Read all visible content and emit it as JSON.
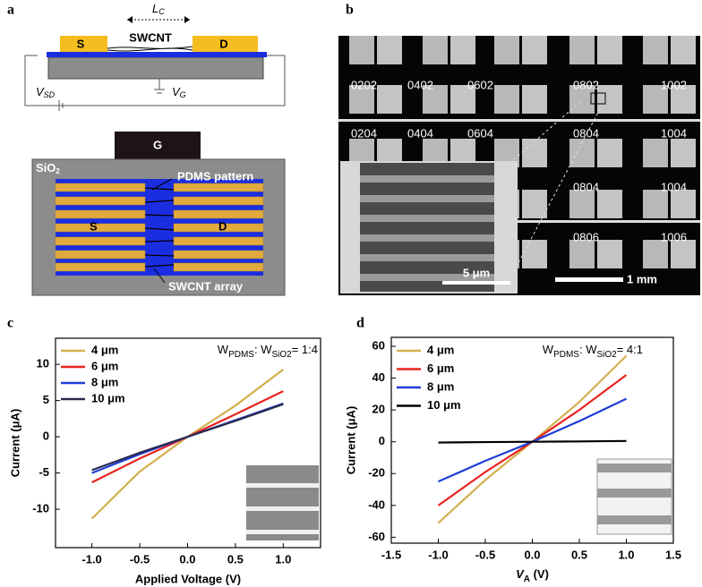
{
  "panel_a": {
    "label": "a",
    "lc_main": "L",
    "lc_sub": "C",
    "swcnt": "SWCNT",
    "source": "S",
    "drain": "D",
    "vsd_main": "V",
    "vsd_sub": "SD",
    "vg_main": "V",
    "vg_sub": "G",
    "gate": "G",
    "sio2_main": "SiO",
    "sio2_sub": "2",
    "pdms": "PDMS pattern",
    "source2": "S",
    "drain2": "D",
    "array": "SWCNT array"
  },
  "panel_b": {
    "label": "b",
    "pad_labels": [
      "0202",
      "0402",
      "0602",
      "0802",
      "1002",
      "0204",
      "0404",
      "0604",
      "0804",
      "1004",
      "0804",
      "1004",
      "0806",
      "1006"
    ],
    "inset_scale": "5 μm",
    "scale": "1 mm"
  },
  "chart_data": [
    {
      "type": "line",
      "panel_label": "c",
      "annotation_parts": [
        "W",
        "PDMS",
        ": W",
        "SiO2",
        "= 1:4"
      ],
      "x_label": "Applied Voltage (V)",
      "y_label": "Current (μA)",
      "x": [
        -1,
        -0.5,
        0,
        0.5,
        1
      ],
      "series": [
        {
          "name": "4 μm",
          "color": "#d4af4f",
          "values": [
            -11.3,
            -4.8,
            0,
            4.3,
            9.3
          ]
        },
        {
          "name": "6 μm",
          "color": "#e8231f",
          "values": [
            -6.3,
            -3.0,
            0,
            3.1,
            6.3
          ]
        },
        {
          "name": "8 μm",
          "color": "#1f3fd6",
          "values": [
            -5.0,
            -2.4,
            0,
            2.3,
            4.6
          ]
        },
        {
          "name": "10 μm",
          "color": "#2b2b4d",
          "values": [
            -4.6,
            -2.2,
            0,
            2.2,
            4.5
          ]
        }
      ],
      "xlim": [
        -1.38,
        1.39
      ],
      "ylim": [
        -15.3,
        13.6
      ],
      "xticks": [
        {
          "value": -1,
          "label": "-1.0"
        },
        {
          "value": -0.5,
          "label": "-0.5"
        },
        {
          "value": 0,
          "label": "0.0"
        },
        {
          "value": 0.5,
          "label": "0.5"
        },
        {
          "value": 1,
          "label": "1.0"
        }
      ],
      "yticks": [
        -10,
        -5,
        0,
        5,
        10
      ]
    },
    {
      "type": "line",
      "panel_label": "d",
      "annotation_parts": [
        "W",
        "PDMS",
        ": W",
        "SiO2",
        "= 4:1"
      ],
      "x_label_parts": [
        "V",
        "A",
        " (V)"
      ],
      "y_label": "Current (μA)",
      "x": [
        -1,
        -0.5,
        0,
        0.5,
        1
      ],
      "series": [
        {
          "name": "4 μm",
          "color": "#d4af4f",
          "values": [
            -51,
            -24,
            0,
            25,
            54
          ]
        },
        {
          "name": "6 μm",
          "color": "#e8231f",
          "values": [
            -40,
            -19,
            0,
            20,
            42
          ]
        },
        {
          "name": "8 μm",
          "color": "#1f3fd6",
          "values": [
            -25,
            -12,
            0,
            13,
            27
          ]
        },
        {
          "name": "10 μm",
          "color": "#000000",
          "values": [
            -0.5,
            -0.2,
            0,
            0.2,
            0.5
          ]
        }
      ],
      "xlim": [
        -1.5,
        1.5
      ],
      "ylim": [
        -63.7,
        65.6
      ],
      "xticks": [
        {
          "value": -1.5,
          "label": "-1.5"
        },
        {
          "value": -1,
          "label": "-1.0"
        },
        {
          "value": -0.5,
          "label": "-0.5"
        },
        {
          "value": 0,
          "label": "0.0"
        },
        {
          "value": 0.5,
          "label": "0.5"
        },
        {
          "value": 1,
          "label": "1.0"
        },
        {
          "value": 1.5,
          "label": "1.5"
        }
      ],
      "yticks": [
        -60,
        -40,
        -20,
        0,
        20,
        40,
        60
      ]
    }
  ]
}
